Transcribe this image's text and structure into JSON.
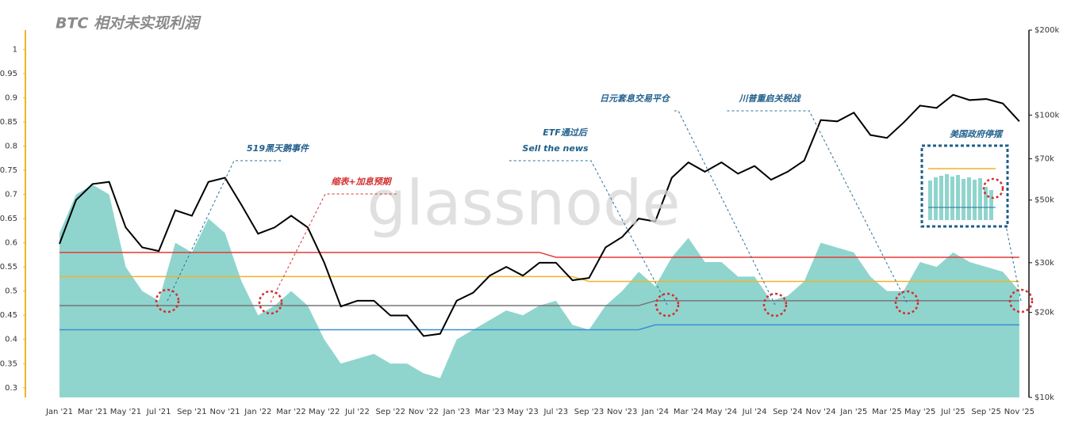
{
  "chart_data": {
    "type": "area-line",
    "title": "BTC 相对未实现利润",
    "watermark": "glassnode",
    "categories": [
      "Jan '21",
      null,
      "Mar '21",
      null,
      "May '21",
      null,
      "Jul '21",
      null,
      "Sep '21",
      null,
      "Nov '21",
      null,
      "Jan '22",
      null,
      "Mar '22",
      null,
      "May '22",
      null,
      "Jul '22",
      null,
      "Sep '22",
      null,
      "Nov '22",
      null,
      "Jan '23",
      null,
      "Mar '23",
      null,
      "May '23",
      null,
      "Jul '23",
      null,
      "Sep '23",
      null,
      "Nov '23",
      null,
      "Jan '24",
      null,
      "Mar '24",
      null,
      "May '24",
      null,
      "Jul '24",
      null,
      "Sep '24",
      null,
      "Nov '24",
      null,
      "Jan '25",
      null,
      "Mar '25",
      null,
      "May '25",
      null,
      "Jul '25",
      null,
      "Sep '25",
      null,
      "Nov '25"
    ],
    "ylim": [
      0.28,
      1.04
    ],
    "yticks": [
      0.3,
      0.35,
      0.4,
      0.45,
      0.5,
      0.55,
      0.6,
      0.65,
      0.7,
      0.75,
      0.8,
      0.85,
      0.9,
      0.95,
      1
    ],
    "y2lim": [
      10000,
      200000
    ],
    "y2log": true,
    "y2ticks": [
      {
        "value": 10000,
        "label": "$10k"
      },
      {
        "value": 20000,
        "label": "$20k"
      },
      {
        "value": 30000,
        "label": "$30k"
      },
      {
        "value": 50000,
        "label": "$50k"
      },
      {
        "value": 70000,
        "label": "$70k"
      },
      {
        "value": 100000,
        "label": "$100k"
      },
      {
        "value": 200000,
        "label": "$200k"
      }
    ],
    "series": [
      {
        "kind": "area",
        "color": "#8fd5ce",
        "values": [
          0.62,
          0.7,
          0.72,
          0.7,
          0.55,
          0.5,
          0.48,
          0.6,
          0.58,
          0.65,
          0.62,
          0.52,
          0.45,
          0.47,
          0.5,
          0.47,
          0.4,
          0.35,
          0.36,
          0.37,
          0.35,
          0.35,
          0.33,
          0.32,
          0.4,
          0.42,
          0.44,
          0.46,
          0.45,
          0.47,
          0.48,
          0.43,
          0.42,
          0.47,
          0.5,
          0.54,
          0.51,
          0.57,
          0.61,
          0.56,
          0.56,
          0.53,
          0.53,
          0.48,
          0.49,
          0.52,
          0.6,
          0.59,
          0.58,
          0.53,
          0.5,
          0.5,
          0.56,
          0.55,
          0.58,
          0.56,
          0.55,
          0.54,
          0.5
        ]
      },
      {
        "kind": "line",
        "color": "#e53935",
        "values": [
          0.58,
          0.58,
          0.58,
          0.58,
          0.58,
          0.58,
          0.58,
          0.58,
          0.58,
          0.58,
          0.58,
          0.58,
          0.58,
          0.58,
          0.58,
          0.58,
          0.58,
          0.58,
          0.58,
          0.58,
          0.58,
          0.58,
          0.58,
          0.58,
          0.58,
          0.58,
          0.58,
          0.58,
          0.58,
          0.58,
          0.57,
          0.57,
          0.57,
          0.57,
          0.57,
          0.57,
          0.57,
          0.57,
          0.57,
          0.57,
          0.57,
          0.57,
          0.57,
          0.57,
          0.57,
          0.57,
          0.57,
          0.57,
          0.57,
          0.57,
          0.57,
          0.57,
          0.57,
          0.57,
          0.57,
          0.57,
          0.57,
          0.57,
          0.57
        ]
      },
      {
        "kind": "line",
        "color": "#f0b429",
        "values": [
          0.53,
          0.53,
          0.53,
          0.53,
          0.53,
          0.53,
          0.53,
          0.53,
          0.53,
          0.53,
          0.53,
          0.53,
          0.53,
          0.53,
          0.53,
          0.53,
          0.53,
          0.53,
          0.53,
          0.53,
          0.53,
          0.53,
          0.53,
          0.53,
          0.53,
          0.53,
          0.53,
          0.53,
          0.53,
          0.53,
          0.53,
          0.53,
          0.52,
          0.52,
          0.52,
          0.52,
          0.52,
          0.52,
          0.52,
          0.52,
          0.52,
          0.52,
          0.52,
          0.52,
          0.52,
          0.52,
          0.52,
          0.52,
          0.52,
          0.52,
          0.52,
          0.52,
          0.52,
          0.52,
          0.52,
          0.52,
          0.52,
          0.52,
          0.52
        ]
      },
      {
        "kind": "line",
        "color": "#777777",
        "values": [
          0.47,
          0.47,
          0.47,
          0.47,
          0.47,
          0.47,
          0.47,
          0.47,
          0.47,
          0.47,
          0.47,
          0.47,
          0.47,
          0.47,
          0.47,
          0.47,
          0.47,
          0.47,
          0.47,
          0.47,
          0.47,
          0.47,
          0.47,
          0.47,
          0.47,
          0.47,
          0.47,
          0.47,
          0.47,
          0.47,
          0.47,
          0.47,
          0.47,
          0.47,
          0.47,
          0.47,
          0.48,
          0.48,
          0.48,
          0.48,
          0.48,
          0.48,
          0.48,
          0.48,
          0.48,
          0.48,
          0.48,
          0.48,
          0.48,
          0.48,
          0.48,
          0.48,
          0.48,
          0.48,
          0.48,
          0.48,
          0.48,
          0.48,
          0.48
        ]
      },
      {
        "kind": "line",
        "color": "#3a8fd0",
        "values": [
          0.42,
          0.42,
          0.42,
          0.42,
          0.42,
          0.42,
          0.42,
          0.42,
          0.42,
          0.42,
          0.42,
          0.42,
          0.42,
          0.42,
          0.42,
          0.42,
          0.42,
          0.42,
          0.42,
          0.42,
          0.42,
          0.42,
          0.42,
          0.42,
          0.42,
          0.42,
          0.42,
          0.42,
          0.42,
          0.42,
          0.42,
          0.42,
          0.42,
          0.42,
          0.42,
          0.42,
          0.43,
          0.43,
          0.43,
          0.43,
          0.43,
          0.43,
          0.43,
          0.43,
          0.43,
          0.43,
          0.43,
          0.43,
          0.43,
          0.43,
          0.43,
          0.43,
          0.43,
          0.43,
          0.43,
          0.43,
          0.43,
          0.43,
          0.43
        ]
      },
      {
        "kind": "line",
        "axis": "y2",
        "color": "#000000",
        "values": [
          35000,
          50000,
          57000,
          58000,
          40000,
          34000,
          33000,
          46000,
          44000,
          58000,
          60000,
          48000,
          38000,
          40000,
          44000,
          40000,
          30000,
          21000,
          22000,
          22000,
          19500,
          19500,
          16500,
          16800,
          22000,
          23500,
          27000,
          29000,
          27000,
          30000,
          30000,
          26000,
          26500,
          34000,
          37000,
          43000,
          42000,
          60000,
          68000,
          63000,
          68000,
          62000,
          66000,
          59000,
          63000,
          69000,
          96000,
          95000,
          102000,
          85000,
          83000,
          94000,
          108000,
          106000,
          118000,
          113000,
          114000,
          110000,
          95000
        ]
      }
    ],
    "annotations": [
      "519黑天鹅事件",
      "缩表+加息预期",
      "ETF通过后",
      "Sell the news",
      "日元套息交易平仓",
      "川普重启关税战",
      "美国政府停摆"
    ]
  }
}
